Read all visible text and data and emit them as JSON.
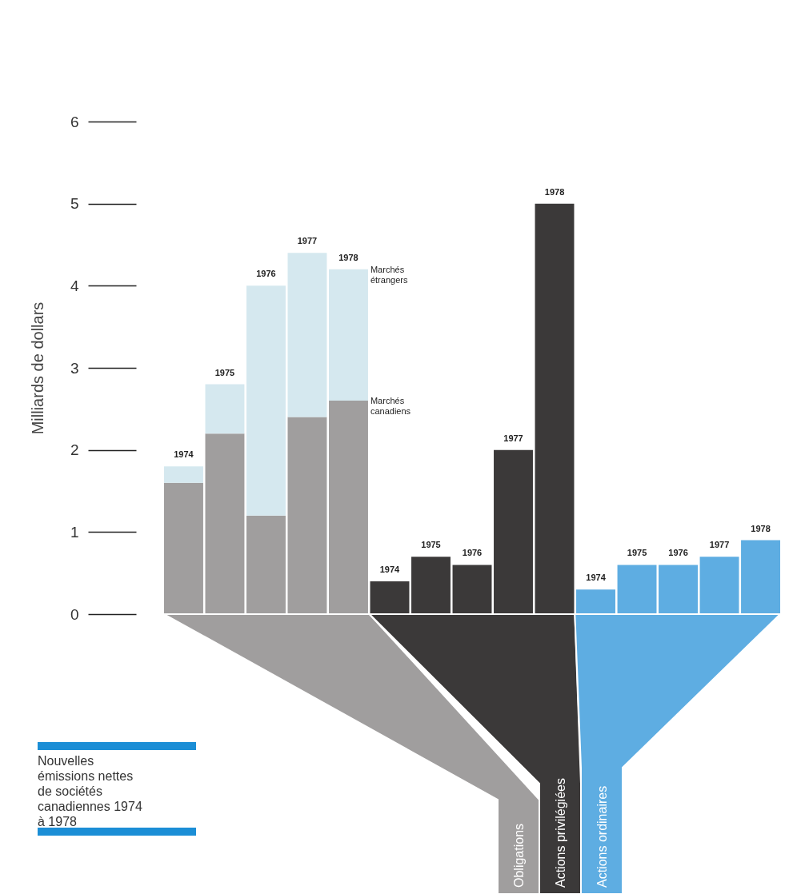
{
  "chart_data": {
    "type": "bar",
    "title": "Nouvelles émissions nettes de sociétés canadiennes 1974 à 1978",
    "ylabel": "Milliards de dollars",
    "categories": [
      null,
      null,
      null,
      null,
      null,
      null,
      null,
      null,
      null,
      null,
      null,
      null,
      null,
      null,
      null
    ],
    "stacked": true,
    "ylim": [
      0,
      6
    ],
    "yticks": [
      0,
      1,
      2,
      3,
      4,
      5,
      6
    ],
    "series": [
      {
        "color": "#a09e9e",
        "values": [
          1.6,
          2.2,
          1.2,
          2.4,
          2.6,
          null,
          null,
          null,
          null,
          null,
          null,
          null,
          null,
          null,
          null
        ]
      },
      {
        "color": "#d5e8ef",
        "values": [
          0.2,
          0.6,
          2.8,
          2.0,
          1.6,
          null,
          null,
          null,
          null,
          null,
          null,
          null,
          null,
          null,
          null
        ]
      },
      {
        "color": "#3b3939",
        "values": [
          null,
          null,
          null,
          null,
          null,
          0.4,
          0.7,
          0.6,
          2.0,
          5.0,
          null,
          null,
          null,
          null,
          null
        ]
      },
      {
        "color": "#5eade2",
        "values": [
          null,
          null,
          null,
          null,
          null,
          null,
          null,
          null,
          null,
          null,
          0.3,
          0.6,
          0.6,
          0.7,
          0.9
        ]
      }
    ],
    "annotations": [
      "1974",
      "1975",
      "1976",
      "1977",
      "1978",
      "1974",
      "1975",
      "1976",
      "1977",
      "1978",
      "1974",
      "1975",
      "1976",
      "1977",
      "1978",
      "Marchés canadiens",
      "Marchés étrangers",
      "Obligations",
      "Actions privilégiées",
      "Actions ordinaires"
    ]
  }
}
